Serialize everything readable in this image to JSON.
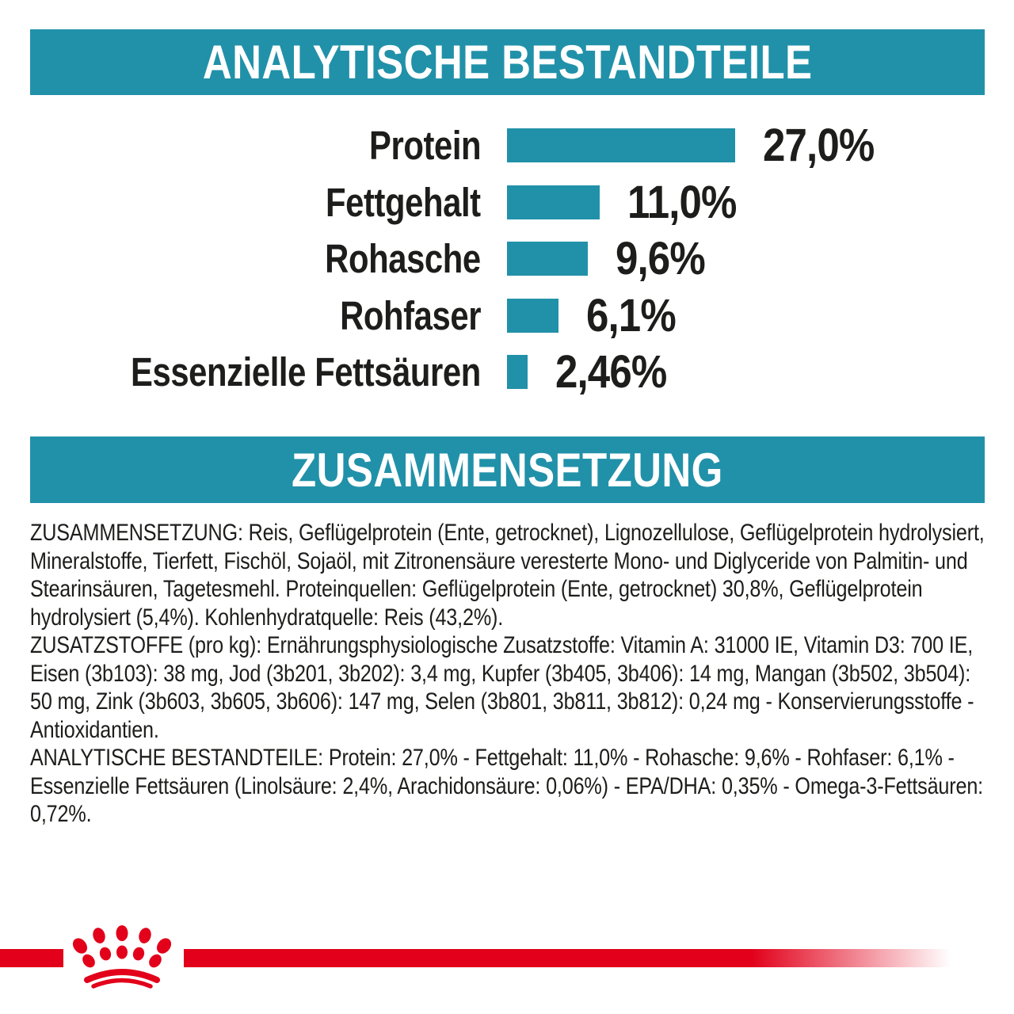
{
  "colors": {
    "teal": "#2191a9",
    "brand_red": "#e2001a",
    "text": "#1d1d1b",
    "banner_text": "#ffffff"
  },
  "banners": {
    "analytical_title": "ANALYTISCHE BESTANDTEILE",
    "composition_title": "ZUSAMMENSETZUNG"
  },
  "chart_data": {
    "type": "bar",
    "orientation": "horizontal",
    "title": "ANALYTISCHE BESTANDTEILE",
    "categories": [
      "Protein",
      "Fettgehalt",
      "Rohasche",
      "Rohfaser",
      "Essenzielle Fettsäuren"
    ],
    "values": [
      27.0,
      11.0,
      9.6,
      6.1,
      2.46
    ],
    "value_labels": [
      "27,0%",
      "11,0%",
      "9,6%",
      "6,1%",
      "2,46%"
    ],
    "unit": "%",
    "xlim": [
      0,
      30
    ],
    "bar_color": "#2191a9",
    "grid": false,
    "legend": false
  },
  "composition_text": {
    "paragraphs": [
      "ZUSAMMENSETZUNG: Reis, Geflügelprotein (Ente, getrocknet), Lignozellulose, Geflügelprotein hydrolysiert, Mineralstoffe, Tierfett, Fischöl, Sojaöl, mit Zitronensäure veresterte Mono- und Diglyceride von Palmitin- und Stearinsäuren, Tagetesmehl. Proteinquellen: Geflügelprotein (Ente, getrocknet) 30,8%, Geflügelprotein hydrolysiert (5,4%). Kohlenhydratquelle: Reis (43,2%).",
      "ZUSATZSTOFFE (pro kg): Ernährungsphysiologische Zusatzstoffe: Vitamin A: 31000 IE, Vitamin D3: 700 IE, Eisen (3b103): 38 mg, Jod (3b201, 3b202): 3,4 mg, Kupfer (3b405, 3b406): 14 mg, Mangan (3b502, 3b504): 50 mg, Zink (3b603, 3b605, 3b606): 147 mg, Selen (3b801, 3b811, 3b812): 0,24 mg - Konservierungsstoffe - Antioxidantien.",
      "ANALYTISCHE BESTANDTEILE: Protein: 27,0% - Fettgehalt: 11,0% - Rohasche: 9,6% - Rohfaser: 6,1% - Essenzielle Fettsäuren (Linolsäure: 2,4%, Arachidonsäure: 0,06%) - EPA/DHA: 0,35% - Omega-3-Fettsäuren: 0,72%.",
      ""
    ]
  },
  "footer": {
    "logo": "royal-canin-paw-icon",
    "band_color": "#e2001a"
  }
}
